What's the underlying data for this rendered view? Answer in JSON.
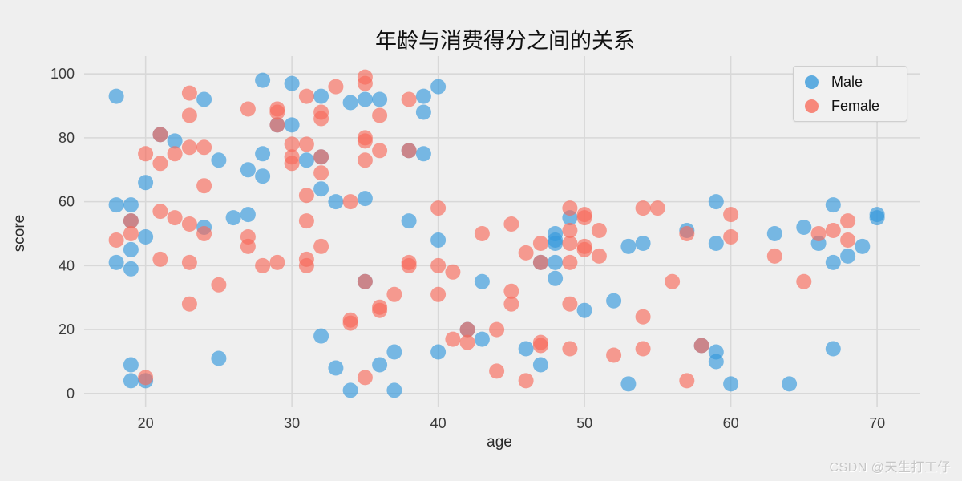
{
  "watermark": "CSDN @天生打工仔",
  "chart_data": {
    "type": "scatter",
    "title": "年龄与消费得分之间的关系",
    "xlabel": "age",
    "ylabel": "score",
    "xlim": [
      15.8,
      72.9
    ],
    "ylim": [
      -4.3,
      104.3
    ],
    "xticks": [
      20,
      30,
      40,
      50,
      60,
      70
    ],
    "yticks": [
      0,
      20,
      40,
      60,
      80,
      100
    ],
    "grid": true,
    "legend_position": "upper right",
    "background_color": "#efefef",
    "gridline_color": "#d8d8d8",
    "marker_opacity": 0.65,
    "series": [
      {
        "name": "Male",
        "color": "#3498db",
        "points": [
          [
            18,
            93
          ],
          [
            24,
            92
          ],
          [
            28,
            98
          ],
          [
            30,
            97
          ],
          [
            32,
            93
          ],
          [
            34,
            91
          ],
          [
            35,
            92
          ],
          [
            36,
            92
          ],
          [
            39,
            93
          ],
          [
            39,
            88
          ],
          [
            40,
            96
          ],
          [
            21,
            81
          ],
          [
            22,
            79
          ],
          [
            29,
            84
          ],
          [
            30,
            84
          ],
          [
            25,
            73
          ],
          [
            28,
            75
          ],
          [
            27,
            70
          ],
          [
            28,
            68
          ],
          [
            20,
            66
          ],
          [
            32,
            74
          ],
          [
            31,
            73
          ],
          [
            38,
            76
          ],
          [
            39,
            75
          ],
          [
            32,
            64
          ],
          [
            33,
            60
          ],
          [
            35,
            61
          ],
          [
            18,
            59
          ],
          [
            19,
            59
          ],
          [
            19,
            54
          ],
          [
            26,
            55
          ],
          [
            27,
            56
          ],
          [
            24,
            52
          ],
          [
            38,
            54
          ],
          [
            40,
            48
          ],
          [
            20,
            49
          ],
          [
            19,
            45
          ],
          [
            18,
            41
          ],
          [
            19,
            39
          ],
          [
            25,
            11
          ],
          [
            19,
            9
          ],
          [
            19,
            4
          ],
          [
            20,
            4
          ],
          [
            32,
            18
          ],
          [
            33,
            8
          ],
          [
            34,
            1
          ],
          [
            36,
            9
          ],
          [
            37,
            13
          ],
          [
            37,
            1
          ],
          [
            40,
            13
          ],
          [
            43,
            35
          ],
          [
            42,
            20
          ],
          [
            43,
            17
          ],
          [
            35,
            35
          ],
          [
            49,
            55
          ],
          [
            48,
            50
          ],
          [
            48,
            48
          ],
          [
            48,
            47
          ],
          [
            48,
            41
          ],
          [
            48,
            36
          ],
          [
            50,
            26
          ],
          [
            52,
            29
          ],
          [
            53,
            46
          ],
          [
            54,
            47
          ],
          [
            57,
            51
          ],
          [
            46,
            14
          ],
          [
            47,
            9
          ],
          [
            53,
            3
          ],
          [
            58,
            15
          ],
          [
            47,
            41
          ],
          [
            59,
            60
          ],
          [
            59,
            47
          ],
          [
            59,
            13
          ],
          [
            59,
            10
          ],
          [
            60,
            3
          ],
          [
            63,
            50
          ],
          [
            64,
            3
          ],
          [
            65,
            52
          ],
          [
            66,
            47
          ],
          [
            67,
            59
          ],
          [
            67,
            41
          ],
          [
            67,
            14
          ],
          [
            68,
            43
          ],
          [
            69,
            46
          ],
          [
            70,
            56
          ],
          [
            70,
            55
          ]
        ]
      },
      {
        "name": "Female",
        "color": "#f86a5a",
        "points": [
          [
            23,
            94
          ],
          [
            23,
            87
          ],
          [
            27,
            89
          ],
          [
            29,
            89
          ],
          [
            29,
            88
          ],
          [
            35,
            99
          ],
          [
            35,
            97
          ],
          [
            31,
            93
          ],
          [
            33,
            96
          ],
          [
            38,
            92
          ],
          [
            32,
            88
          ],
          [
            32,
            86
          ],
          [
            36,
            87
          ],
          [
            21,
            81
          ],
          [
            29,
            84
          ],
          [
            23,
            77
          ],
          [
            24,
            77
          ],
          [
            20,
            75
          ],
          [
            22,
            75
          ],
          [
            21,
            72
          ],
          [
            30,
            78
          ],
          [
            31,
            78
          ],
          [
            30,
            74
          ],
          [
            30,
            72
          ],
          [
            32,
            74
          ],
          [
            32,
            69
          ],
          [
            35,
            80
          ],
          [
            35,
            79
          ],
          [
            36,
            76
          ],
          [
            35,
            73
          ],
          [
            38,
            76
          ],
          [
            24,
            65
          ],
          [
            21,
            57
          ],
          [
            22,
            55
          ],
          [
            19,
            54
          ],
          [
            23,
            53
          ],
          [
            31,
            62
          ],
          [
            34,
            60
          ],
          [
            31,
            54
          ],
          [
            40,
            58
          ],
          [
            19,
            50
          ],
          [
            18,
            48
          ],
          [
            24,
            50
          ],
          [
            21,
            42
          ],
          [
            23,
            41
          ],
          [
            27,
            49
          ],
          [
            27,
            46
          ],
          [
            28,
            40
          ],
          [
            29,
            41
          ],
          [
            25,
            34
          ],
          [
            23,
            28
          ],
          [
            20,
            5
          ],
          [
            32,
            46
          ],
          [
            31,
            42
          ],
          [
            31,
            40
          ],
          [
            35,
            35
          ],
          [
            37,
            31
          ],
          [
            36,
            27
          ],
          [
            36,
            26
          ],
          [
            34,
            23
          ],
          [
            34,
            22
          ],
          [
            35,
            5
          ],
          [
            38,
            41
          ],
          [
            38,
            40
          ],
          [
            40,
            40
          ],
          [
            41,
            38
          ],
          [
            40,
            31
          ],
          [
            41,
            17
          ],
          [
            42,
            16
          ],
          [
            42,
            20
          ],
          [
            43,
            50
          ],
          [
            44,
            20
          ],
          [
            44,
            7
          ],
          [
            45,
            53
          ],
          [
            49,
            58
          ],
          [
            49,
            51
          ],
          [
            50,
            56
          ],
          [
            50,
            55
          ],
          [
            51,
            51
          ],
          [
            51,
            43
          ],
          [
            46,
            44
          ],
          [
            47,
            47
          ],
          [
            49,
            47
          ],
          [
            50,
            46
          ],
          [
            50,
            45
          ],
          [
            47,
            41
          ],
          [
            49,
            41
          ],
          [
            45,
            32
          ],
          [
            45,
            28
          ],
          [
            49,
            28
          ],
          [
            54,
            24
          ],
          [
            56,
            35
          ],
          [
            54,
            58
          ],
          [
            55,
            58
          ],
          [
            57,
            50
          ],
          [
            47,
            16
          ],
          [
            47,
            15
          ],
          [
            46,
            4
          ],
          [
            49,
            14
          ],
          [
            52,
            12
          ],
          [
            54,
            14
          ],
          [
            57,
            4
          ],
          [
            58,
            15
          ],
          [
            60,
            49
          ],
          [
            60,
            56
          ],
          [
            63,
            43
          ],
          [
            65,
            35
          ],
          [
            66,
            50
          ],
          [
            67,
            51
          ],
          [
            68,
            48
          ],
          [
            68,
            54
          ]
        ]
      }
    ]
  }
}
